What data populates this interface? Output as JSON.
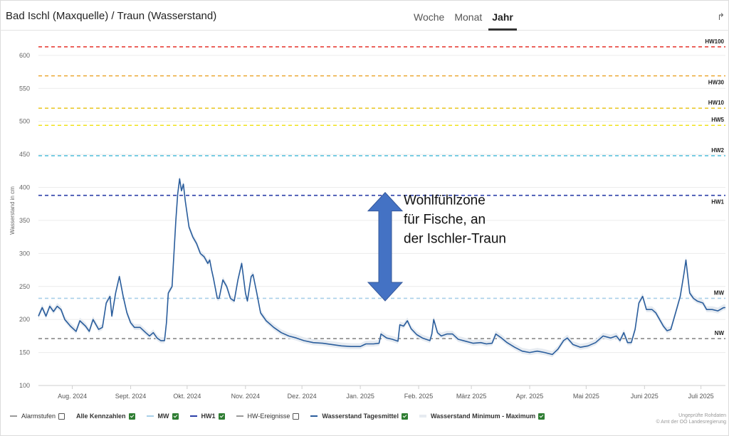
{
  "title": "Bad Ischl (Maxquelle) / Traun (Wasserstand)",
  "tabs": [
    {
      "label": "Woche",
      "active": false
    },
    {
      "label": "Monat",
      "active": false
    },
    {
      "label": "Jahr",
      "active": true
    }
  ],
  "share_icon": "share-arrow-icon",
  "annotation": {
    "lines": [
      "Wohlfühlzone",
      "für Fische, an",
      "der Ischler-Traun"
    ],
    "arrow_color": "#4472c4",
    "arrow_y_range": [
      226,
      388
    ]
  },
  "legend": [
    {
      "label": "Alarmstufen",
      "checked": false,
      "bold": false,
      "color": "#9a9a9a"
    },
    {
      "label": "Alle Kennzahlen",
      "checked": true,
      "bold": true,
      "color": null
    },
    {
      "label": "MW",
      "checked": true,
      "bold": true,
      "color": "#a8d0e8"
    },
    {
      "label": "HW1",
      "checked": true,
      "bold": true,
      "color": "#2b3fa8"
    },
    {
      "label": "HW-Ereignisse",
      "checked": false,
      "bold": false,
      "color": "#9a9a9a"
    },
    {
      "label": "Wasserstand Tagesmittel",
      "checked": true,
      "bold": true,
      "color": "#2a5d9c"
    },
    {
      "label": "Wasserstand Minimum - Maximum",
      "checked": true,
      "bold": true,
      "color": "#e6ebf1"
    }
  ],
  "credit": [
    "Ungeprüfte Rohdaten",
    "© Amt der OÖ Landesregierung"
  ],
  "chart_data": {
    "type": "line",
    "ylabel": "Wasserstand in cm",
    "ylim": [
      100,
      630
    ],
    "yticks": [
      100,
      150,
      200,
      250,
      300,
      350,
      400,
      450,
      500,
      550,
      600
    ],
    "xlim": [
      "2024-07-14",
      "2025-07-14"
    ],
    "xticks": [
      {
        "date": "2024-08-01",
        "label": "Aug. 2024"
      },
      {
        "date": "2024-09-01",
        "label": "Sept. 2024"
      },
      {
        "date": "2024-10-01",
        "label": "Okt. 2024"
      },
      {
        "date": "2024-11-01",
        "label": "Nov. 2024"
      },
      {
        "date": "2024-12-01",
        "label": "Dez. 2024"
      },
      {
        "date": "2025-01-01",
        "label": "Jan. 2025"
      },
      {
        "date": "2025-02-01",
        "label": "Feb. 2025"
      },
      {
        "date": "2025-03-01",
        "label": "März 2025"
      },
      {
        "date": "2025-04-01",
        "label": "Apr. 2025"
      },
      {
        "date": "2025-05-01",
        "label": "Mai 2025"
      },
      {
        "date": "2025-06-01",
        "label": "Juni 2025"
      },
      {
        "date": "2025-07-01",
        "label": "Juli 2025"
      }
    ],
    "thresholds": [
      {
        "name": "HW100",
        "value": 613,
        "color": "#e8423a",
        "label_pos": "above"
      },
      {
        "name": "HW30",
        "value": 569,
        "color": "#eba832",
        "label_pos": "below"
      },
      {
        "name": "HW10",
        "value": 520,
        "color": "#e8c51f",
        "label_pos": "above"
      },
      {
        "name": "HW5",
        "value": 494,
        "color": "#f0e21d",
        "label_pos": "above"
      },
      {
        "name": "HW2",
        "value": 448,
        "color": "#5cc3dd",
        "label_pos": "above"
      },
      {
        "name": "HW1",
        "value": 388,
        "color": "#2b3fa8",
        "label_pos": "below"
      },
      {
        "name": "MW",
        "value": 232,
        "color": "#a8d0e8",
        "label_pos": "above"
      },
      {
        "name": "NW",
        "value": 171,
        "color": "#8a8a8a",
        "label_pos": "above"
      }
    ],
    "series": [
      {
        "name": "Wasserstand Tagesmittel",
        "color": "#2a5d9c",
        "points": [
          [
            "2024-07-14",
            205
          ],
          [
            "2024-07-16",
            218
          ],
          [
            "2024-07-18",
            205
          ],
          [
            "2024-07-20",
            220
          ],
          [
            "2024-07-22",
            212
          ],
          [
            "2024-07-24",
            220
          ],
          [
            "2024-07-26",
            215
          ],
          [
            "2024-07-28",
            200
          ],
          [
            "2024-07-31",
            190
          ],
          [
            "2024-08-03",
            182
          ],
          [
            "2024-08-05",
            198
          ],
          [
            "2024-08-08",
            190
          ],
          [
            "2024-08-10",
            182
          ],
          [
            "2024-08-12",
            200
          ],
          [
            "2024-08-15",
            185
          ],
          [
            "2024-08-17",
            188
          ],
          [
            "2024-08-19",
            225
          ],
          [
            "2024-08-21",
            235
          ],
          [
            "2024-08-22",
            205
          ],
          [
            "2024-08-24",
            240
          ],
          [
            "2024-08-26",
            265
          ],
          [
            "2024-08-28",
            235
          ],
          [
            "2024-08-30",
            210
          ],
          [
            "2024-09-01",
            195
          ],
          [
            "2024-09-03",
            188
          ],
          [
            "2024-09-06",
            188
          ],
          [
            "2024-09-09",
            180
          ],
          [
            "2024-09-11",
            175
          ],
          [
            "2024-09-13",
            180
          ],
          [
            "2024-09-15",
            172
          ],
          [
            "2024-09-17",
            168
          ],
          [
            "2024-09-19",
            168
          ],
          [
            "2024-09-20",
            195
          ],
          [
            "2024-09-21",
            240
          ],
          [
            "2024-09-23",
            250
          ],
          [
            "2024-09-25",
            350
          ],
          [
            "2024-09-26",
            390
          ],
          [
            "2024-09-27",
            413
          ],
          [
            "2024-09-28",
            395
          ],
          [
            "2024-09-29",
            405
          ],
          [
            "2024-09-30",
            380
          ],
          [
            "2024-10-02",
            340
          ],
          [
            "2024-10-04",
            325
          ],
          [
            "2024-10-06",
            315
          ],
          [
            "2024-10-08",
            300
          ],
          [
            "2024-10-10",
            295
          ],
          [
            "2024-10-12",
            285
          ],
          [
            "2024-10-13",
            290
          ],
          [
            "2024-10-14",
            275
          ],
          [
            "2024-10-15",
            262
          ],
          [
            "2024-10-17",
            232
          ],
          [
            "2024-10-18",
            232
          ],
          [
            "2024-10-20",
            260
          ],
          [
            "2024-10-22",
            250
          ],
          [
            "2024-10-24",
            232
          ],
          [
            "2024-10-26",
            228
          ],
          [
            "2024-10-28",
            260
          ],
          [
            "2024-10-30",
            285
          ],
          [
            "2024-11-01",
            240
          ],
          [
            "2024-11-02",
            228
          ],
          [
            "2024-11-04",
            265
          ],
          [
            "2024-11-05",
            268
          ],
          [
            "2024-11-07",
            240
          ],
          [
            "2024-11-09",
            210
          ],
          [
            "2024-11-12",
            198
          ],
          [
            "2024-11-16",
            188
          ],
          [
            "2024-11-20",
            180
          ],
          [
            "2024-11-24",
            175
          ],
          [
            "2024-11-28",
            172
          ],
          [
            "2024-12-02",
            168
          ],
          [
            "2024-12-07",
            165
          ],
          [
            "2024-12-12",
            164
          ],
          [
            "2024-12-17",
            162
          ],
          [
            "2024-12-22",
            160
          ],
          [
            "2024-12-27",
            159
          ],
          [
            "2025-01-01",
            159
          ],
          [
            "2025-01-04",
            163
          ],
          [
            "2025-01-08",
            163
          ],
          [
            "2025-01-11",
            164
          ],
          [
            "2025-01-12",
            178
          ],
          [
            "2025-01-15",
            172
          ],
          [
            "2025-01-18",
            170
          ],
          [
            "2025-01-21",
            167
          ],
          [
            "2025-01-22",
            192
          ],
          [
            "2025-01-24",
            190
          ],
          [
            "2025-01-26",
            198
          ],
          [
            "2025-01-28",
            186
          ],
          [
            "2025-01-31",
            177
          ],
          [
            "2025-02-03",
            172
          ],
          [
            "2025-02-07",
            168
          ],
          [
            "2025-02-08",
            178
          ],
          [
            "2025-02-09",
            200
          ],
          [
            "2025-02-11",
            180
          ],
          [
            "2025-02-13",
            175
          ],
          [
            "2025-02-16",
            178
          ],
          [
            "2025-02-19",
            178
          ],
          [
            "2025-02-22",
            170
          ],
          [
            "2025-02-26",
            167
          ],
          [
            "2025-03-02",
            164
          ],
          [
            "2025-03-06",
            165
          ],
          [
            "2025-03-09",
            163
          ],
          [
            "2025-03-12",
            164
          ],
          [
            "2025-03-14",
            178
          ],
          [
            "2025-03-17",
            172
          ],
          [
            "2025-03-20",
            165
          ],
          [
            "2025-03-24",
            158
          ],
          [
            "2025-03-28",
            152
          ],
          [
            "2025-04-01",
            150
          ],
          [
            "2025-04-05",
            152
          ],
          [
            "2025-04-09",
            150
          ],
          [
            "2025-04-13",
            147
          ],
          [
            "2025-04-16",
            155
          ],
          [
            "2025-04-19",
            168
          ],
          [
            "2025-04-21",
            172
          ],
          [
            "2025-04-24",
            162
          ],
          [
            "2025-04-28",
            158
          ],
          [
            "2025-05-02",
            160
          ],
          [
            "2025-05-06",
            165
          ],
          [
            "2025-05-10",
            175
          ],
          [
            "2025-05-14",
            172
          ],
          [
            "2025-05-17",
            175
          ],
          [
            "2025-05-19",
            168
          ],
          [
            "2025-05-21",
            180
          ],
          [
            "2025-05-23",
            165
          ],
          [
            "2025-05-25",
            165
          ],
          [
            "2025-05-27",
            185
          ],
          [
            "2025-05-29",
            225
          ],
          [
            "2025-05-31",
            235
          ],
          [
            "2025-06-02",
            215
          ],
          [
            "2025-06-05",
            215
          ],
          [
            "2025-06-07",
            210
          ],
          [
            "2025-06-09",
            200
          ],
          [
            "2025-06-11",
            190
          ],
          [
            "2025-06-13",
            183
          ],
          [
            "2025-06-15",
            185
          ],
          [
            "2025-06-18",
            215
          ],
          [
            "2025-06-20",
            235
          ],
          [
            "2025-06-22",
            270
          ],
          [
            "2025-06-23",
            290
          ],
          [
            "2025-06-25",
            240
          ],
          [
            "2025-06-27",
            232
          ],
          [
            "2025-06-29",
            228
          ],
          [
            "2025-07-02",
            225
          ],
          [
            "2025-07-04",
            215
          ],
          [
            "2025-07-07",
            215
          ],
          [
            "2025-07-10",
            213
          ],
          [
            "2025-07-13",
            218
          ],
          [
            "2025-07-14",
            218
          ]
        ]
      }
    ]
  }
}
